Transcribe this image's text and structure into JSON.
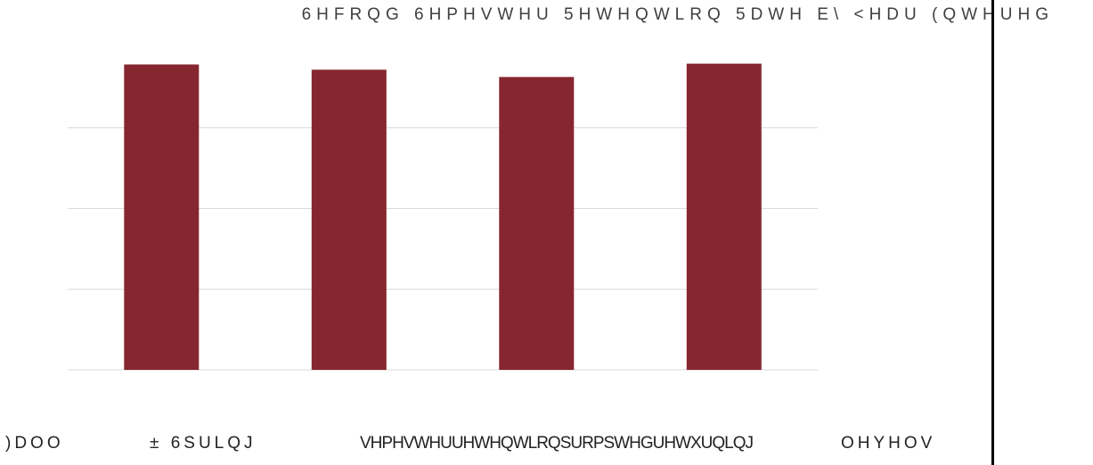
{
  "chart_data": {
    "type": "bar",
    "title": "6HFRQG 6HPHVWHU 5HWHQWLRQ 5DWH E\\ <HDU (QWHUHG",
    "categories": [
      "",
      "",
      "",
      ""
    ],
    "values": [
      95.7,
      94.4,
      92.6,
      95.9
    ],
    "ylim": [
      20,
      100
    ],
    "gridlines": [
      20,
      40,
      60,
      80
    ],
    "grid": true,
    "legend": "none",
    "bar_color": "#86262F",
    "gridline_color": "#D9D9D9",
    "title_color": "#404040"
  },
  "footnote": {
    "part1": ")DOO",
    "part2": "± 6SULQJ",
    "part3": "VHPHVWHUUHWHQWLRQSURPSWHGUHWXUQLQJ",
    "part4": "OHYHOV"
  }
}
